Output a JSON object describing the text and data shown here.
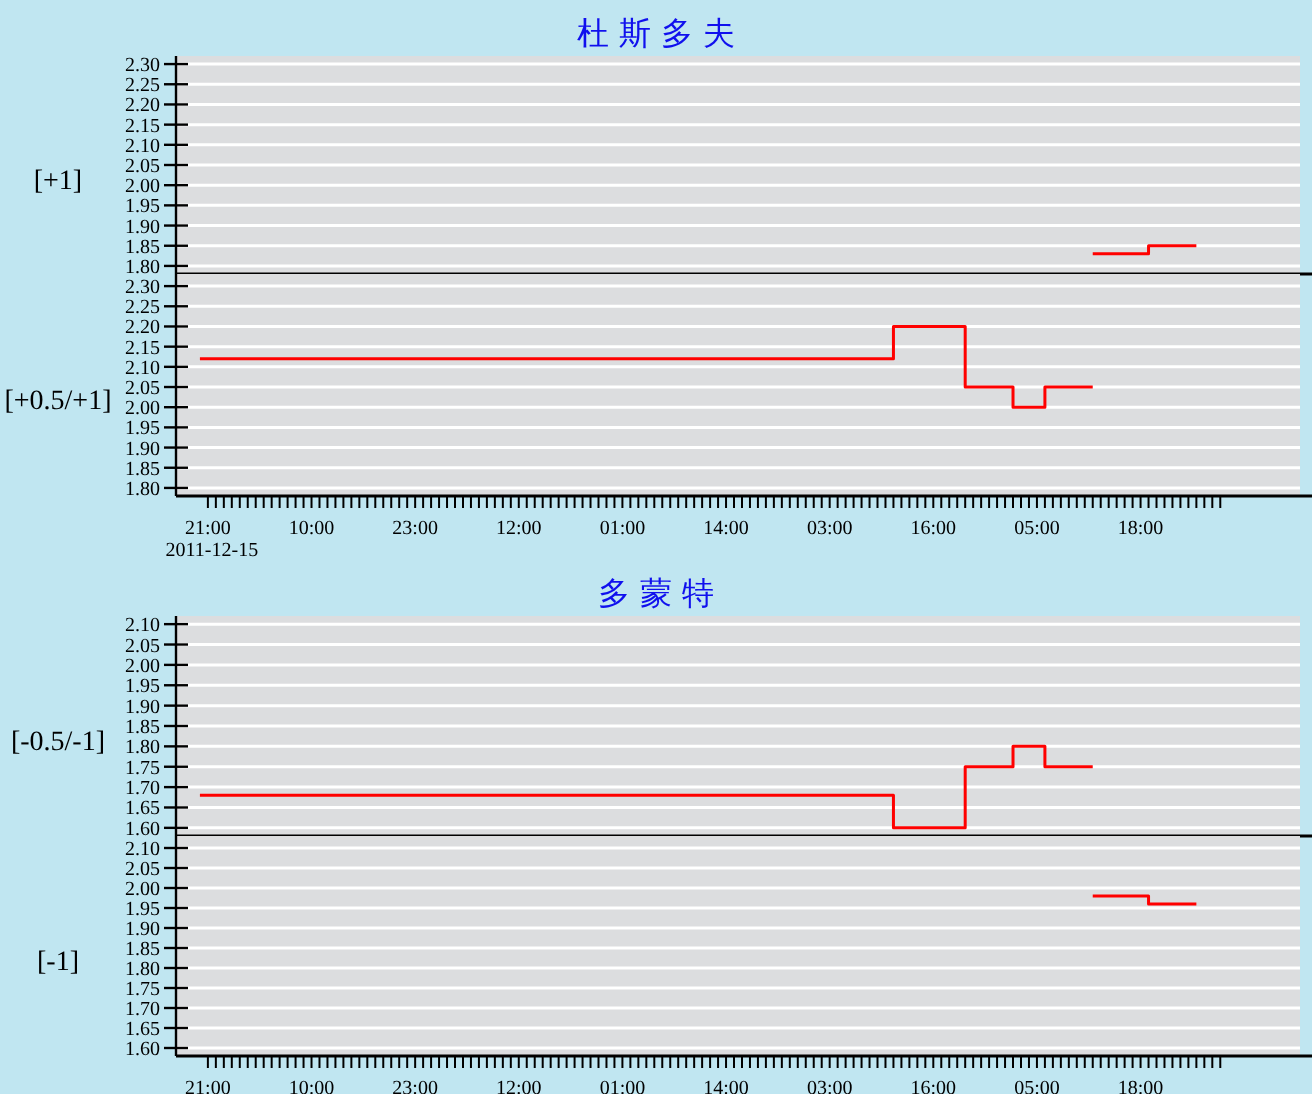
{
  "chart_data": [
    {
      "type": "step",
      "title": "杜 斯 多 夫",
      "ylabel": "[+1]",
      "xlim": [
        "2011-12-15T17:00",
        "2011-12-21T14:00"
      ],
      "ylim": [
        1.78,
        2.32
      ],
      "yticks": [
        {
          "value": 1.8,
          "label": "1.80"
        },
        1.85,
        {
          "value": 1.9,
          "label": "1.90"
        },
        1.95,
        {
          "value": 2,
          "label": "2.00"
        },
        2.05,
        {
          "value": 2.1,
          "label": "2.10"
        },
        2.15,
        {
          "value": 2.2,
          "label": "2.20"
        },
        2.25,
        {
          "value": 2.3,
          "label": "2.30"
        }
      ],
      "grid": "y",
      "tick_labels": "y",
      "series": [
        {
          "color": "#ff0000",
          "x": [
            "2011-12-20T12:00",
            "2011-12-20T19:00",
            "2011-12-21T01:00"
          ],
          "values": [
            1.83,
            1.85,
            1.85
          ]
        }
      ]
    },
    {
      "type": "step",
      "ylabel": "[+0.5/+1]",
      "xlim": [
        "2011-12-15T17:00",
        "2011-12-21T14:00"
      ],
      "ylim": [
        1.78,
        2.33
      ],
      "yticks": [
        {
          "value": 1.8,
          "label": "1.80"
        },
        1.85,
        {
          "value": 1.9,
          "label": "1.90"
        },
        1.95,
        {
          "value": 2,
          "label": "2.00"
        },
        2.05,
        {
          "value": 2.1,
          "label": "2.10"
        },
        2.15,
        {
          "value": 2.2,
          "label": "2.20"
        },
        2.25,
        {
          "value": 2.3,
          "label": "2.30"
        }
      ],
      "grid": "y",
      "annotations": [
        "2011-12-15"
      ],
      "xticks": [
        {
          "value": "2011-12-15T21:00",
          "label": "21:00"
        },
        {
          "value": "2011-12-15T22:00",
          "label": null
        },
        {
          "value": "2011-12-15T23:00",
          "label": null
        },
        {
          "value": "2011-12-16T00:00",
          "label": null
        },
        {
          "value": "2011-12-16T01:00",
          "label": null
        },
        {
          "value": "2011-12-16T02:00",
          "label": null
        },
        {
          "value": "2011-12-16T03:00",
          "label": null
        },
        {
          "value": "2011-12-16T04:00",
          "label": null
        },
        {
          "value": "2011-12-16T05:00",
          "label": null
        },
        {
          "value": "2011-12-16T06:00",
          "label": null
        },
        {
          "value": "2011-12-16T07:00",
          "label": null
        },
        {
          "value": "2011-12-16T08:00",
          "label": null
        },
        {
          "value": "2011-12-16T09:00",
          "label": null
        },
        {
          "value": "2011-12-16T10:00",
          "label": "10:00"
        },
        {
          "value": "2011-12-16T11:00",
          "label": null
        },
        {
          "value": "2011-12-16T12:00",
          "label": null
        },
        {
          "value": "2011-12-16T13:00",
          "label": null
        },
        {
          "value": "2011-12-16T14:00",
          "label": null
        },
        {
          "value": "2011-12-16T15:00",
          "label": null
        },
        {
          "value": "2011-12-16T16:00",
          "label": null
        },
        {
          "value": "2011-12-16T17:00",
          "label": null
        },
        {
          "value": "2011-12-16T18:00",
          "label": null
        },
        {
          "value": "2011-12-16T19:00",
          "label": null
        },
        {
          "value": "2011-12-16T20:00",
          "label": null
        },
        {
          "value": "2011-12-16T21:00",
          "label": null
        },
        {
          "value": "2011-12-16T22:00",
          "label": null
        },
        {
          "value": "2011-12-16T23:00",
          "label": "23:00"
        },
        {
          "value": "2011-12-17T00:00",
          "label": null
        },
        {
          "value": "2011-12-17T01:00",
          "label": null
        },
        {
          "value": "2011-12-17T02:00",
          "label": null
        },
        {
          "value": "2011-12-17T03:00",
          "label": null
        },
        {
          "value": "2011-12-17T04:00",
          "label": null
        },
        {
          "value": "2011-12-17T05:00",
          "label": null
        },
        {
          "value": "2011-12-17T06:00",
          "label": null
        },
        {
          "value": "2011-12-17T07:00",
          "label": null
        },
        {
          "value": "2011-12-17T08:00",
          "label": null
        },
        {
          "value": "2011-12-17T09:00",
          "label": null
        },
        {
          "value": "2011-12-17T10:00",
          "label": null
        },
        {
          "value": "2011-12-17T11:00",
          "label": null
        },
        {
          "value": "2011-12-17T12:00",
          "label": "12:00"
        },
        {
          "value": "2011-12-17T13:00",
          "label": null
        },
        {
          "value": "2011-12-17T14:00",
          "label": null
        },
        {
          "value": "2011-12-17T15:00",
          "label": null
        },
        {
          "value": "2011-12-17T16:00",
          "label": null
        },
        {
          "value": "2011-12-17T17:00",
          "label": null
        },
        {
          "value": "2011-12-17T18:00",
          "label": null
        },
        {
          "value": "2011-12-17T19:00",
          "label": null
        },
        {
          "value": "2011-12-17T20:00",
          "label": null
        },
        {
          "value": "2011-12-17T21:00",
          "label": null
        },
        {
          "value": "2011-12-17T22:00",
          "label": null
        },
        {
          "value": "2011-12-17T23:00",
          "label": null
        },
        {
          "value": "2011-12-18T00:00",
          "label": null
        },
        {
          "value": "2011-12-18T01:00",
          "label": "01:00"
        },
        {
          "value": "2011-12-18T02:00",
          "label": null
        },
        {
          "value": "2011-12-18T03:00",
          "label": null
        },
        {
          "value": "2011-12-18T04:00",
          "label": null
        },
        {
          "value": "2011-12-18T05:00",
          "label": null
        },
        {
          "value": "2011-12-18T06:00",
          "label": null
        },
        {
          "value": "2011-12-18T07:00",
          "label": null
        },
        {
          "value": "2011-12-18T08:00",
          "label": null
        },
        {
          "value": "2011-12-18T09:00",
          "label": null
        },
        {
          "value": "2011-12-18T10:00",
          "label": null
        },
        {
          "value": "2011-12-18T11:00",
          "label": null
        },
        {
          "value": "2011-12-18T12:00",
          "label": null
        },
        {
          "value": "2011-12-18T13:00",
          "label": null
        },
        {
          "value": "2011-12-18T14:00",
          "label": "14:00"
        },
        {
          "value": "2011-12-18T15:00",
          "label": null
        },
        {
          "value": "2011-12-18T16:00",
          "label": null
        },
        {
          "value": "2011-12-18T17:00",
          "label": null
        },
        {
          "value": "2011-12-18T18:00",
          "label": null
        },
        {
          "value": "2011-12-18T19:00",
          "label": null
        },
        {
          "value": "2011-12-18T20:00",
          "label": null
        },
        {
          "value": "2011-12-18T21:00",
          "label": null
        },
        {
          "value": "2011-12-18T22:00",
          "label": null
        },
        {
          "value": "2011-12-18T23:00",
          "label": null
        },
        {
          "value": "2011-12-19T00:00",
          "label": null
        },
        {
          "value": "2011-12-19T01:00",
          "label": null
        },
        {
          "value": "2011-12-19T02:00",
          "label": null
        },
        {
          "value": "2011-12-19T03:00",
          "label": "03:00"
        },
        {
          "value": "2011-12-19T04:00",
          "label": null
        },
        {
          "value": "2011-12-19T05:00",
          "label": null
        },
        {
          "value": "2011-12-19T06:00",
          "label": null
        },
        {
          "value": "2011-12-19T07:00",
          "label": null
        },
        {
          "value": "2011-12-19T08:00",
          "label": null
        },
        {
          "value": "2011-12-19T09:00",
          "label": null
        },
        {
          "value": "2011-12-19T10:00",
          "label": null
        },
        {
          "value": "2011-12-19T11:00",
          "label": null
        },
        {
          "value": "2011-12-19T12:00",
          "label": null
        },
        {
          "value": "2011-12-19T13:00",
          "label": null
        },
        {
          "value": "2011-12-19T14:00",
          "label": null
        },
        {
          "value": "2011-12-19T15:00",
          "label": null
        },
        {
          "value": "2011-12-19T16:00",
          "label": "16:00"
        },
        {
          "value": "2011-12-19T17:00",
          "label": null
        },
        {
          "value": "2011-12-19T18:00",
          "label": null
        },
        {
          "value": "2011-12-19T19:00",
          "label": null
        },
        {
          "value": "2011-12-19T20:00",
          "label": null
        },
        {
          "value": "2011-12-19T21:00",
          "label": null
        },
        {
          "value": "2011-12-19T22:00",
          "label": null
        },
        {
          "value": "2011-12-19T23:00",
          "label": null
        },
        {
          "value": "2011-12-20T00:00",
          "label": null
        },
        {
          "value": "2011-12-20T01:00",
          "label": null
        },
        {
          "value": "2011-12-20T02:00",
          "label": null
        },
        {
          "value": "2011-12-20T03:00",
          "label": null
        },
        {
          "value": "2011-12-20T04:00",
          "label": null
        },
        {
          "value": "2011-12-20T05:00",
          "label": "05:00"
        },
        {
          "value": "2011-12-20T06:00",
          "label": null
        },
        {
          "value": "2011-12-20T07:00",
          "label": null
        },
        {
          "value": "2011-12-20T08:00",
          "label": null
        },
        {
          "value": "2011-12-20T09:00",
          "label": null
        },
        {
          "value": "2011-12-20T10:00",
          "label": null
        },
        {
          "value": "2011-12-20T11:00",
          "label": null
        },
        {
          "value": "2011-12-20T12:00",
          "label": null
        },
        {
          "value": "2011-12-20T13:00",
          "label": null
        },
        {
          "value": "2011-12-20T14:00",
          "label": null
        },
        {
          "value": "2011-12-20T15:00",
          "label": null
        },
        {
          "value": "2011-12-20T16:00",
          "label": null
        },
        {
          "value": "2011-12-20T17:00",
          "label": null
        },
        {
          "value": "2011-12-20T18:00",
          "label": "18:00"
        },
        {
          "value": "2011-12-20T19:00",
          "label": null
        },
        {
          "value": "2011-12-20T20:00",
          "label": null
        },
        {
          "value": "2011-12-20T21:00",
          "label": null
        },
        {
          "value": "2011-12-20T22:00",
          "label": null
        },
        {
          "value": "2011-12-20T23:00",
          "label": null
        },
        {
          "value": "2011-12-21T00:00",
          "label": null
        },
        {
          "value": "2011-12-21T01:00",
          "label": null
        },
        {
          "value": "2011-12-21T02:00",
          "label": null
        },
        {
          "value": "2011-12-21T03:00",
          "label": null
        },
        {
          "value": "2011-12-21T04:00",
          "label": null
        }
      ],
      "series": [
        {
          "color": "#ff0000",
          "x": [
            "2011-12-15T20:00",
            "2011-12-19T11:00",
            "2011-12-19T20:00",
            "2011-12-20T02:00",
            "2011-12-20T06:00",
            "2011-12-20T12:00"
          ],
          "values": [
            2.12,
            2.2,
            2.05,
            2.0,
            2.05,
            2.05
          ]
        }
      ]
    },
    {
      "type": "step",
      "title": "多 蒙 特",
      "ylabel": "[-0.5/-1]",
      "xlim": [
        "2011-12-15T17:00",
        "2011-12-21T14:00"
      ],
      "ylim": [
        1.58,
        2.12
      ],
      "yticks": [
        {
          "value": 1.6,
          "label": "1.60"
        },
        1.65,
        {
          "value": 1.7,
          "label": "1.70"
        },
        1.75,
        {
          "value": 1.8,
          "label": "1.80"
        },
        1.85,
        {
          "value": 1.9,
          "label": "1.90"
        },
        1.95,
        {
          "value": 2,
          "label": "2.00"
        },
        2.05,
        {
          "value": 2.1,
          "label": "2.10"
        }
      ],
      "grid": "y",
      "tick_labels": "y",
      "series": [
        {
          "color": "#ff0000",
          "x": [
            "2011-12-15T20:00",
            "2011-12-19T11:00",
            "2011-12-19T20:00",
            "2011-12-20T02:00",
            "2011-12-20T06:00",
            "2011-12-20T12:00"
          ],
          "values": [
            1.68,
            1.6,
            1.75,
            1.8,
            1.75,
            1.75
          ]
        }
      ]
    },
    {
      "type": "step",
      "ylabel": "[-1]",
      "xlim": [
        "2011-12-15T17:00",
        "2011-12-21T14:00"
      ],
      "ylim": [
        1.58,
        2.13
      ],
      "yticks": [
        {
          "value": 1.6,
          "label": "1.60"
        },
        1.65,
        {
          "value": 1.7,
          "label": "1.70"
        },
        1.75,
        {
          "value": 1.8,
          "label": "1.80"
        },
        1.85,
        {
          "value": 1.9,
          "label": "1.90"
        },
        1.95,
        {
          "value": 2,
          "label": "2.00"
        },
        2.05,
        {
          "value": 2.1,
          "label": "2.10"
        }
      ],
      "grid": "y",
      "xticks": [
        {
          "value": "2011-12-15T21:00",
          "label": "21:00"
        },
        {
          "value": "2011-12-15T22:00",
          "label": null
        },
        {
          "value": "2011-12-15T23:00",
          "label": null
        },
        {
          "value": "2011-12-16T00:00",
          "label": null
        },
        {
          "value": "2011-12-16T01:00",
          "label": null
        },
        {
          "value": "2011-12-16T02:00",
          "label": null
        },
        {
          "value": "2011-12-16T03:00",
          "label": null
        },
        {
          "value": "2011-12-16T04:00",
          "label": null
        },
        {
          "value": "2011-12-16T05:00",
          "label": null
        },
        {
          "value": "2011-12-16T06:00",
          "label": null
        },
        {
          "value": "2011-12-16T07:00",
          "label": null
        },
        {
          "value": "2011-12-16T08:00",
          "label": null
        },
        {
          "value": "2011-12-16T09:00",
          "label": null
        },
        {
          "value": "2011-12-16T10:00",
          "label": "10:00"
        },
        {
          "value": "2011-12-16T11:00",
          "label": null
        },
        {
          "value": "2011-12-16T12:00",
          "label": null
        },
        {
          "value": "2011-12-16T13:00",
          "label": null
        },
        {
          "value": "2011-12-16T14:00",
          "label": null
        },
        {
          "value": "2011-12-16T15:00",
          "label": null
        },
        {
          "value": "2011-12-16T16:00",
          "label": null
        },
        {
          "value": "2011-12-16T17:00",
          "label": null
        },
        {
          "value": "2011-12-16T18:00",
          "label": null
        },
        {
          "value": "2011-12-16T19:00",
          "label": null
        },
        {
          "value": "2011-12-16T20:00",
          "label": null
        },
        {
          "value": "2011-12-16T21:00",
          "label": null
        },
        {
          "value": "2011-12-16T22:00",
          "label": null
        },
        {
          "value": "2011-12-16T23:00",
          "label": "23:00"
        },
        {
          "value": "2011-12-17T00:00",
          "label": null
        },
        {
          "value": "2011-12-17T01:00",
          "label": null
        },
        {
          "value": "2011-12-17T02:00",
          "label": null
        },
        {
          "value": "2011-12-17T03:00",
          "label": null
        },
        {
          "value": "2011-12-17T04:00",
          "label": null
        },
        {
          "value": "2011-12-17T05:00",
          "label": null
        },
        {
          "value": "2011-12-17T06:00",
          "label": null
        },
        {
          "value": "2011-12-17T07:00",
          "label": null
        },
        {
          "value": "2011-12-17T08:00",
          "label": null
        },
        {
          "value": "2011-12-17T09:00",
          "label": null
        },
        {
          "value": "2011-12-17T10:00",
          "label": null
        },
        {
          "value": "2011-12-17T11:00",
          "label": null
        },
        {
          "value": "2011-12-17T12:00",
          "label": "12:00"
        },
        {
          "value": "2011-12-17T13:00",
          "label": null
        },
        {
          "value": "2011-12-17T14:00",
          "label": null
        },
        {
          "value": "2011-12-17T15:00",
          "label": null
        },
        {
          "value": "2011-12-17T16:00",
          "label": null
        },
        {
          "value": "2011-12-17T17:00",
          "label": null
        },
        {
          "value": "2011-12-17T18:00",
          "label": null
        },
        {
          "value": "2011-12-17T19:00",
          "label": null
        },
        {
          "value": "2011-12-17T20:00",
          "label": null
        },
        {
          "value": "2011-12-17T21:00",
          "label": null
        },
        {
          "value": "2011-12-17T22:00",
          "label": null
        },
        {
          "value": "2011-12-17T23:00",
          "label": null
        },
        {
          "value": "2011-12-18T00:00",
          "label": null
        },
        {
          "value": "2011-12-18T01:00",
          "label": "01:00"
        },
        {
          "value": "2011-12-18T02:00",
          "label": null
        },
        {
          "value": "2011-12-18T03:00",
          "label": null
        },
        {
          "value": "2011-12-18T04:00",
          "label": null
        },
        {
          "value": "2011-12-18T05:00",
          "label": null
        },
        {
          "value": "2011-12-18T06:00",
          "label": null
        },
        {
          "value": "2011-12-18T07:00",
          "label": null
        },
        {
          "value": "2011-12-18T08:00",
          "label": null
        },
        {
          "value": "2011-12-18T09:00",
          "label": null
        },
        {
          "value": "2011-12-18T10:00",
          "label": null
        },
        {
          "value": "2011-12-18T11:00",
          "label": null
        },
        {
          "value": "2011-12-18T12:00",
          "label": null
        },
        {
          "value": "2011-12-18T13:00",
          "label": null
        },
        {
          "value": "2011-12-18T14:00",
          "label": "14:00"
        },
        {
          "value": "2011-12-18T15:00",
          "label": null
        },
        {
          "value": "2011-12-18T16:00",
          "label": null
        },
        {
          "value": "2011-12-18T17:00",
          "label": null
        },
        {
          "value": "2011-12-18T18:00",
          "label": null
        },
        {
          "value": "2011-12-18T19:00",
          "label": null
        },
        {
          "value": "2011-12-18T20:00",
          "label": null
        },
        {
          "value": "2011-12-18T21:00",
          "label": null
        },
        {
          "value": "2011-12-18T22:00",
          "label": null
        },
        {
          "value": "2011-12-18T23:00",
          "label": null
        },
        {
          "value": "2011-12-19T00:00",
          "label": null
        },
        {
          "value": "2011-12-19T01:00",
          "label": null
        },
        {
          "value": "2011-12-19T02:00",
          "label": null
        },
        {
          "value": "2011-12-19T03:00",
          "label": "03:00"
        },
        {
          "value": "2011-12-19T04:00",
          "label": null
        },
        {
          "value": "2011-12-19T05:00",
          "label": null
        },
        {
          "value": "2011-12-19T06:00",
          "label": null
        },
        {
          "value": "2011-12-19T07:00",
          "label": null
        },
        {
          "value": "2011-12-19T08:00",
          "label": null
        },
        {
          "value": "2011-12-19T09:00",
          "label": null
        },
        {
          "value": "2011-12-19T10:00",
          "label": null
        },
        {
          "value": "2011-12-19T11:00",
          "label": null
        },
        {
          "value": "2011-12-19T12:00",
          "label": null
        },
        {
          "value": "2011-12-19T13:00",
          "label": null
        },
        {
          "value": "2011-12-19T14:00",
          "label": null
        },
        {
          "value": "2011-12-19T15:00",
          "label": null
        },
        {
          "value": "2011-12-19T16:00",
          "label": "16:00"
        },
        {
          "value": "2011-12-19T17:00",
          "label": null
        },
        {
          "value": "2011-12-19T18:00",
          "label": null
        },
        {
          "value": "2011-12-19T19:00",
          "label": null
        },
        {
          "value": "2011-12-19T20:00",
          "label": null
        },
        {
          "value": "2011-12-19T21:00",
          "label": null
        },
        {
          "value": "2011-12-19T22:00",
          "label": null
        },
        {
          "value": "2011-12-19T23:00",
          "label": null
        },
        {
          "value": "2011-12-20T00:00",
          "label": null
        },
        {
          "value": "2011-12-20T01:00",
          "label": null
        },
        {
          "value": "2011-12-20T02:00",
          "label": null
        },
        {
          "value": "2011-12-20T03:00",
          "label": null
        },
        {
          "value": "2011-12-20T04:00",
          "label": null
        },
        {
          "value": "2011-12-20T05:00",
          "label": "05:00"
        },
        {
          "value": "2011-12-20T06:00",
          "label": null
        },
        {
          "value": "2011-12-20T07:00",
          "label": null
        },
        {
          "value": "2011-12-20T08:00",
          "label": null
        },
        {
          "value": "2011-12-20T09:00",
          "label": null
        },
        {
          "value": "2011-12-20T10:00",
          "label": null
        },
        {
          "value": "2011-12-20T11:00",
          "label": null
        },
        {
          "value": "2011-12-20T12:00",
          "label": null
        },
        {
          "value": "2011-12-20T13:00",
          "label": null
        },
        {
          "value": "2011-12-20T14:00",
          "label": null
        },
        {
          "value": "2011-12-20T15:00",
          "label": null
        },
        {
          "value": "2011-12-20T16:00",
          "label": null
        },
        {
          "value": "2011-12-20T17:00",
          "label": null
        },
        {
          "value": "2011-12-20T18:00",
          "label": "18:00"
        },
        {
          "value": "2011-12-20T19:00",
          "label": null
        },
        {
          "value": "2011-12-20T20:00",
          "label": null
        },
        {
          "value": "2011-12-20T21:00",
          "label": null
        },
        {
          "value": "2011-12-20T22:00",
          "label": null
        },
        {
          "value": "2011-12-20T23:00",
          "label": null
        },
        {
          "value": "2011-12-21T00:00",
          "label": null
        },
        {
          "value": "2011-12-21T01:00",
          "label": null
        },
        {
          "value": "2011-12-21T02:00",
          "label": null
        },
        {
          "value": "2011-12-21T03:00",
          "label": null
        },
        {
          "value": "2011-12-21T04:00",
          "label": null
        }
      ],
      "series": [
        {
          "color": "#ff0000",
          "x": [
            "2011-12-20T12:00",
            "2011-12-20T19:00",
            "2011-12-21T01:00"
          ],
          "values": [
            1.98,
            1.96,
            1.96
          ]
        }
      ]
    }
  ]
}
